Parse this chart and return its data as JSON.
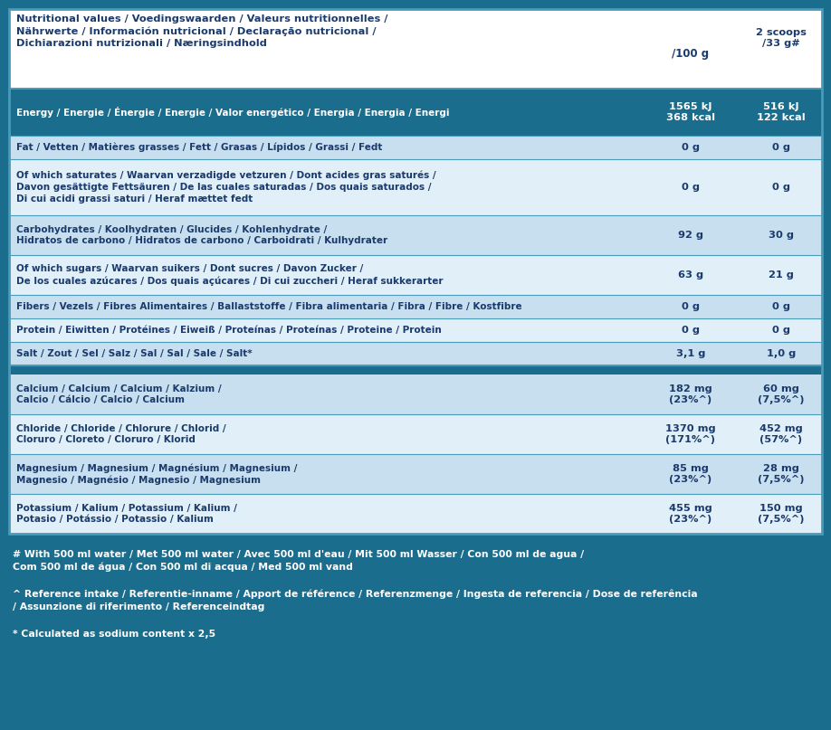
{
  "bg_color": "#1b6d8e",
  "text_dark": "#1a3a6b",
  "text_white": "#ffffff",
  "border_color": "#4a9aba",
  "row_alt1": "#c8dff0",
  "row_alt2": "#e0eff8",
  "energy_bg": "#1b6d8e",
  "title_lines": "Nutritional values / Voedingswaarden / Valeurs nutritionnelles /\nNährwerte / Información nutricional / Declaração nutricional /\nDichiarazioni nutrizionali / Næringsindhold",
  "col1_header": "/100 g",
  "col2_header": "2 scoops\n/33 g#",
  "rows": [
    {
      "label": "Energy / Energie / Énergie / Energie / Valor energético / Energia / Energia / Energi",
      "val1": "1565 kJ\n368 kcal",
      "val2": "516 kJ\n122 kcal",
      "bg": "#1b6d8e",
      "text_color": "#ffffff",
      "nlines": 2
    },
    {
      "label": "Fat / Vetten / Matières grasses / Fett / Grasas / Lípidos / Grassi / Fedt",
      "val1": "0 g",
      "val2": "0 g",
      "bg": "#c8dff0",
      "text_color": "#1a3a6b",
      "nlines": 1
    },
    {
      "label": "Of which saturates / Waarvan verzadigde vetzuren / Dont acides gras saturés /\nDavon gesättigte Fettsäuren / De las cuales saturadas / Dos quais saturados /\nDi cui acidi grassi saturi / Heraf mættet fedt",
      "val1": "0 g",
      "val2": "0 g",
      "bg": "#e0eff8",
      "text_color": "#1a3a6b",
      "nlines": 3
    },
    {
      "label": "Carbohydrates / Koolhydraten / Glucides / Kohlenhydrate /\nHidratos de carbono / Hidratos de carbono / Carboidrati / Kulhydrater",
      "val1": "92 g",
      "val2": "30 g",
      "bg": "#c8dff0",
      "text_color": "#1a3a6b",
      "nlines": 2
    },
    {
      "label": "Of which sugars / Waarvan suikers / Dont sucres / Davon Zucker /\nDe los cuales azúcares / Dos quais açúcares / Di cui zuccheri / Heraf sukkerarter",
      "val1": "63 g",
      "val2": "21 g",
      "bg": "#e0eff8",
      "text_color": "#1a3a6b",
      "nlines": 2
    },
    {
      "label": "Fibers / Vezels / Fibres Alimentaires / Ballaststoffe / Fibra alimentaria / Fibra / Fibre / Kostfibre",
      "val1": "0 g",
      "val2": "0 g",
      "bg": "#c8dff0",
      "text_color": "#1a3a6b",
      "nlines": 1
    },
    {
      "label": "Protein / Eiwitten / Protéines / Eiweiß / Proteínas / Proteínas / Proteine / Protein",
      "val1": "0 g",
      "val2": "0 g",
      "bg": "#e0eff8",
      "text_color": "#1a3a6b",
      "nlines": 1
    },
    {
      "label": "Salt / Zout / Sel / Salz / Sal / Sal / Sale / Salt*",
      "val1": "3,1 g",
      "val2": "1,0 g",
      "bg": "#c8dff0",
      "text_color": "#1a3a6b",
      "nlines": 1
    }
  ],
  "mineral_rows": [
    {
      "label": "Calcium / Calcium / Calcium / Kalzium /\nCalcio / Cálcio / Calcio / Calcium",
      "val1": "182 mg\n(23%^)",
      "val2": "60 mg\n(7,5%^)",
      "bg": "#c8dff0",
      "text_color": "#1a3a6b",
      "nlines": 2
    },
    {
      "label": "Chloride / Chloride / Chlorure / Chlorid /\nCloruro / Cloreto / Cloruro / Klorid",
      "val1": "1370 mg\n(171%^)",
      "val2": "452 mg\n(57%^)",
      "bg": "#e0eff8",
      "text_color": "#1a3a6b",
      "nlines": 2
    },
    {
      "label": "Magnesium / Magnesium / Magnésium / Magnesium /\nMagnesio / Magnésio / Magnesio / Magnesium",
      "val1": "85 mg\n(23%^)",
      "val2": "28 mg\n(7,5%^)",
      "bg": "#c8dff0",
      "text_color": "#1a3a6b",
      "nlines": 2
    },
    {
      "label": "Potassium / Kalium / Potassium / Kalium /\nPotasio / Potássio / Potassio / Kalium",
      "val1": "455 mg\n(23%^)",
      "val2": "150 mg\n(7,5%^)",
      "bg": "#e0eff8",
      "text_color": "#1a3a6b",
      "nlines": 2
    }
  ],
  "footnote1": "# With 500 ml water / Met 500 ml water / Avec 500 ml d'eau / Mit 500 ml Wasser / Con 500 ml de agua /\nCom 500 ml de água / Con 500 ml di acqua / Med 500 ml vand",
  "footnote2": "^ Reference intake / Referentie-inname / Apport de référence / Referenzmenge / Ingesta de referencia / Dose de referência\n/ Assunzione di riferimento / Referenceindtag",
  "footnote3": "* Calculated as sodium content x 2,5"
}
